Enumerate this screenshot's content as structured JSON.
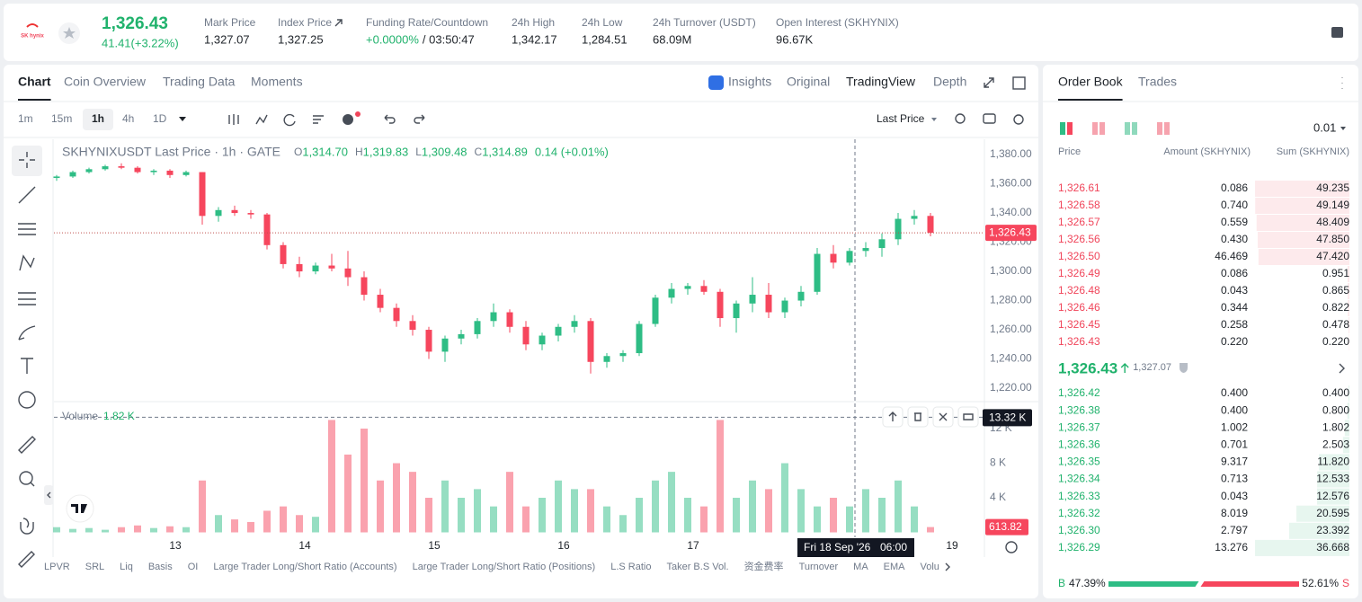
{
  "header": {
    "logo_text": "SK hynix",
    "price": "1,326.43",
    "change": "41.41(+3.22%)",
    "stats": [
      {
        "label": "Mark Price",
        "value": "1,327.07"
      },
      {
        "label": "Index Price",
        "value": "1,327.25"
      },
      {
        "label": "Funding Rate/Countdown",
        "value": "+0.0000%",
        "extra": "/ 03:50:47"
      },
      {
        "label": "24h High",
        "value": "1,342.17"
      },
      {
        "label": "24h Low",
        "value": "1,284.51"
      },
      {
        "label": "24h Turnover (USDT)",
        "value": "68.09M"
      },
      {
        "label": "Open Interest (SKHYNIX)",
        "value": "96.67K"
      }
    ]
  },
  "tabs": [
    "Chart",
    "Coin Overview",
    "Trading Data",
    "Moments"
  ],
  "view_tabs": [
    "Insights",
    "Original",
    "TradingView",
    "Depth"
  ],
  "intervals": [
    "1m",
    "15m",
    "1h",
    "4h",
    "1D"
  ],
  "price_source": "Last Price",
  "chart_data": {
    "type": "candlestick",
    "title": "SKHYNIXUSDT Last Price · 1h · GATE",
    "ohlc_legend": [
      {
        "key": "O",
        "value": "1,314.70"
      },
      {
        "key": "H",
        "value": "1,319.83"
      },
      {
        "key": "L",
        "value": "1,309.48"
      },
      {
        "key": "C",
        "value": "1,314.89"
      }
    ],
    "change_legend": "0.14 (+0.01%)",
    "up_color": "#2ebd85",
    "down_color": "#f6465d",
    "x": [
      0,
      3,
      6,
      9,
      12,
      15,
      18,
      21,
      24,
      27,
      30,
      33,
      36,
      39,
      42,
      45,
      48,
      51,
      54,
      57,
      60,
      63,
      66,
      69,
      72,
      75,
      78,
      81,
      84,
      87,
      90,
      93,
      96,
      99,
      102,
      105,
      108,
      111,
      114,
      117,
      120,
      123,
      126,
      129,
      132,
      135,
      138,
      141,
      144,
      147,
      150,
      153,
      156,
      159,
      162
    ],
    "open": [
      1364,
      1365,
      1368,
      1370,
      1372,
      1371,
      1368,
      1369,
      1366,
      1368,
      1338,
      1342,
      1340,
      1339,
      1318,
      1305,
      1300,
      1304,
      1302,
      1296,
      1284,
      1275,
      1266,
      1260,
      1245,
      1254,
      1257,
      1266,
      1272,
      1262,
      1250,
      1256,
      1262,
      1266,
      1238,
      1242,
      1244,
      1264,
      1282,
      1288,
      1290,
      1286,
      1268,
      1278,
      1284,
      1272,
      1280,
      1286,
      1312,
      1306,
      1314,
      1316,
      1322,
      1336,
      1338
    ],
    "high": [
      1366,
      1369,
      1371,
      1373,
      1374,
      1372,
      1370,
      1370,
      1369,
      1368,
      1344,
      1345,
      1342,
      1340,
      1320,
      1310,
      1306,
      1312,
      1314,
      1300,
      1288,
      1278,
      1270,
      1262,
      1256,
      1260,
      1268,
      1278,
      1274,
      1266,
      1258,
      1264,
      1270,
      1268,
      1244,
      1246,
      1266,
      1284,
      1292,
      1292,
      1294,
      1288,
      1280,
      1296,
      1292,
      1282,
      1290,
      1316,
      1318,
      1316,
      1320,
      1326,
      1340,
      1342,
      1340
    ],
    "low": [
      1362,
      1364,
      1367,
      1369,
      1370,
      1367,
      1366,
      1364,
      1365,
      1332,
      1334,
      1338,
      1336,
      1315,
      1302,
      1296,
      1298,
      1300,
      1290,
      1280,
      1272,
      1262,
      1256,
      1240,
      1238,
      1250,
      1254,
      1262,
      1258,
      1246,
      1246,
      1252,
      1258,
      1230,
      1234,
      1238,
      1242,
      1262,
      1278,
      1284,
      1284,
      1262,
      1258,
      1272,
      1268,
      1268,
      1276,
      1284,
      1302,
      1304,
      1310,
      1310,
      1318,
      1332,
      1324
    ],
    "close": [
      1365,
      1368,
      1370,
      1372,
      1371,
      1368,
      1369,
      1366,
      1368,
      1338,
      1342,
      1340,
      1339,
      1318,
      1305,
      1300,
      1304,
      1302,
      1296,
      1284,
      1275,
      1266,
      1260,
      1245,
      1254,
      1257,
      1266,
      1272,
      1262,
      1250,
      1256,
      1262,
      1266,
      1238,
      1242,
      1244,
      1264,
      1282,
      1288,
      1290,
      1286,
      1268,
      1278,
      1284,
      1272,
      1280,
      1286,
      1312,
      1306,
      1314,
      1316,
      1322,
      1336,
      1338,
      1326.43
    ],
    "xlim": [
      0,
      172
    ],
    "xticks": [
      {
        "value": 22,
        "label": "13"
      },
      {
        "value": 46,
        "label": "14"
      },
      {
        "value": 70,
        "label": "15"
      },
      {
        "value": 94,
        "label": "16"
      },
      {
        "value": 118,
        "label": "17"
      },
      {
        "value": 166,
        "label": "19"
      }
    ],
    "ylim": [
      1211.4,
      1390.5
    ],
    "yticks": [
      {
        "value": 1220,
        "label": "1,220.00"
      },
      {
        "value": 1240,
        "label": "1,240.00"
      },
      {
        "value": 1260,
        "label": "1,260.00"
      },
      {
        "value": 1280,
        "label": "1,280.00"
      },
      {
        "value": 1300,
        "label": "1,300.00"
      },
      {
        "value": 1320,
        "label": "1,320.00"
      },
      {
        "value": 1340,
        "label": "1,340.00"
      },
      {
        "value": 1360,
        "label": "1,360.00"
      },
      {
        "value": 1380,
        "label": "1,380.00"
      }
    ],
    "last_price": {
      "value": 1326.43,
      "label": "1,326.43"
    },
    "volume": {
      "title": "Volume",
      "value_label": "1.82 K",
      "values": [
        0.6,
        0.4,
        0.5,
        0.3,
        0.6,
        0.8,
        0.5,
        0.7,
        0.6,
        6,
        2,
        1.5,
        1.2,
        2.5,
        3,
        2,
        1.8,
        13,
        9,
        12,
        6,
        8,
        7,
        4,
        6,
        4,
        5,
        3,
        7,
        3,
        4,
        6,
        5,
        5,
        3,
        2,
        4,
        6,
        7,
        4,
        3,
        13,
        4,
        6,
        5,
        8,
        5,
        3,
        4,
        3,
        5,
        4,
        6,
        3,
        0.61382
      ],
      "ylim": [
        0,
        14.3
      ],
      "yticks": [
        {
          "value": 4,
          "label": "4 K"
        },
        {
          "value": 8,
          "label": "8 K"
        },
        {
          "value": 12,
          "label": "12 K"
        }
      ],
      "last": {
        "value": 0.61382,
        "label": "613.82"
      }
    },
    "crosshair": {
      "x": 148,
      "date": "Fri 18 Sep '26",
      "time": "06:00",
      "volume": {
        "value": 13.32,
        "label": "13.32 K"
      }
    }
  },
  "indicators": [
    "LPVR",
    "SRL",
    "Liq",
    "Basis",
    "OI",
    "Large Trader Long/Short Ratio (Accounts)",
    "Large Trader Long/Short Ratio (Positions)",
    "L.S Ratio",
    "Taker B.S Vol.",
    "资金费率",
    "Turnover",
    "MA",
    "EMA",
    "Volu"
  ],
  "order_book": {
    "tabs": [
      "Order Book",
      "Trades"
    ],
    "precision": "0.01",
    "columns": [
      "Price",
      "Amount (SKHYNIX)",
      "Sum (SKHYNIX)"
    ],
    "asks": [
      [
        "1,326.61",
        "0.086",
        "49.235"
      ],
      [
        "1,326.58",
        "0.740",
        "49.149"
      ],
      [
        "1,326.57",
        "0.559",
        "48.409"
      ],
      [
        "1,326.56",
        "0.430",
        "47.850"
      ],
      [
        "1,326.50",
        "46.469",
        "47.420"
      ],
      [
        "1,326.49",
        "0.086",
        "0.951"
      ],
      [
        "1,326.48",
        "0.043",
        "0.865"
      ],
      [
        "1,326.46",
        "0.344",
        "0.822"
      ],
      [
        "1,326.45",
        "0.258",
        "0.478"
      ],
      [
        "1,326.43",
        "0.220",
        "0.220"
      ]
    ],
    "mid": "1,326.43",
    "mark": "1,327.07",
    "bids": [
      [
        "1,326.42",
        "0.400",
        "0.400"
      ],
      [
        "1,326.38",
        "0.400",
        "0.800"
      ],
      [
        "1,326.37",
        "1.002",
        "1.802"
      ],
      [
        "1,326.36",
        "0.701",
        "2.503"
      ],
      [
        "1,326.35",
        "9.317",
        "11.820"
      ],
      [
        "1,326.34",
        "0.713",
        "12.533"
      ],
      [
        "1,326.33",
        "0.043",
        "12.576"
      ],
      [
        "1,326.32",
        "8.019",
        "20.595"
      ],
      [
        "1,326.30",
        "2.797",
        "23.392"
      ],
      [
        "1,326.29",
        "13.276",
        "36.668"
      ]
    ],
    "ratio": {
      "b": "B",
      "s": "S",
      "buy": {
        "value": 47.39,
        "label": "47.39%"
      },
      "sell": {
        "value": 52.61,
        "label": "52.61%"
      }
    }
  }
}
